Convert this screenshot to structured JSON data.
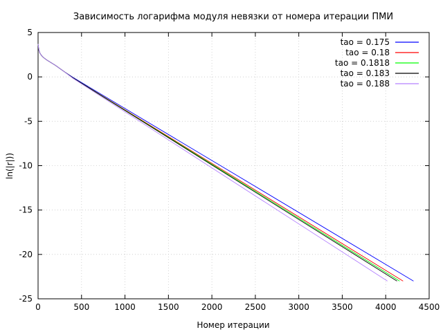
{
  "chart_data": {
    "type": "line",
    "title": "Зависимость логарифма модуля невязки от номера итерации ПМИ",
    "xlabel": "Номер итерации",
    "ylabel": "ln(|r|))",
    "xlim": [
      0,
      4500
    ],
    "ylim": [
      -25,
      5
    ],
    "xticks": [
      0,
      500,
      1000,
      1500,
      2000,
      2500,
      3000,
      3500,
      4000,
      4500
    ],
    "yticks": [
      5,
      0,
      -5,
      -10,
      -15,
      -20,
      -25
    ],
    "xtick_labels": [
      "0",
      "500",
      "1000",
      "1500",
      "2000",
      "2500",
      "3000",
      "3500",
      "4000",
      "4500"
    ],
    "ytick_labels": [
      "5",
      "0",
      "-5",
      "-10",
      "-15",
      "-20",
      "-25"
    ],
    "grid": true,
    "legend_position": "top-right",
    "series": [
      {
        "name": "tao = 0.175",
        "color": "#0000ff",
        "x": [
          0,
          5,
          10,
          20,
          40,
          60,
          100,
          150,
          200,
          300,
          400,
          4320
        ],
        "y": [
          3.7,
          3.3,
          3.0,
          2.7,
          2.4,
          2.2,
          1.9,
          1.6,
          1.3,
          0.6,
          -0.05,
          -23.0
        ]
      },
      {
        "name": "tao = 0.18",
        "color": "#ff0000",
        "x": [
          0,
          5,
          10,
          20,
          40,
          60,
          100,
          150,
          200,
          300,
          400,
          4200
        ],
        "y": [
          3.7,
          3.3,
          3.0,
          2.7,
          2.4,
          2.2,
          1.9,
          1.6,
          1.3,
          0.6,
          -0.1,
          -23.0
        ]
      },
      {
        "name": "tao = 0.1818",
        "color": "#00ff00",
        "x": [
          0,
          5,
          10,
          20,
          40,
          60,
          100,
          150,
          200,
          300,
          400,
          4160
        ],
        "y": [
          3.7,
          3.3,
          3.0,
          2.7,
          2.4,
          2.2,
          1.9,
          1.6,
          1.3,
          0.6,
          -0.1,
          -23.0
        ]
      },
      {
        "name": "tao = 0.183",
        "color": "#000000",
        "x": [
          0,
          5,
          10,
          20,
          40,
          60,
          100,
          150,
          200,
          300,
          400,
          4130
        ],
        "y": [
          3.7,
          3.3,
          3.0,
          2.7,
          2.4,
          2.2,
          1.9,
          1.6,
          1.3,
          0.6,
          -0.1,
          -23.0
        ]
      },
      {
        "name": "tao = 0.188",
        "color": "#b380ff",
        "x": [
          0,
          5,
          10,
          20,
          40,
          60,
          100,
          150,
          200,
          300,
          400,
          4020
        ],
        "y": [
          3.7,
          3.3,
          3.0,
          2.7,
          2.4,
          2.2,
          1.9,
          1.6,
          1.3,
          0.6,
          -0.15,
          -23.0
        ]
      }
    ]
  }
}
